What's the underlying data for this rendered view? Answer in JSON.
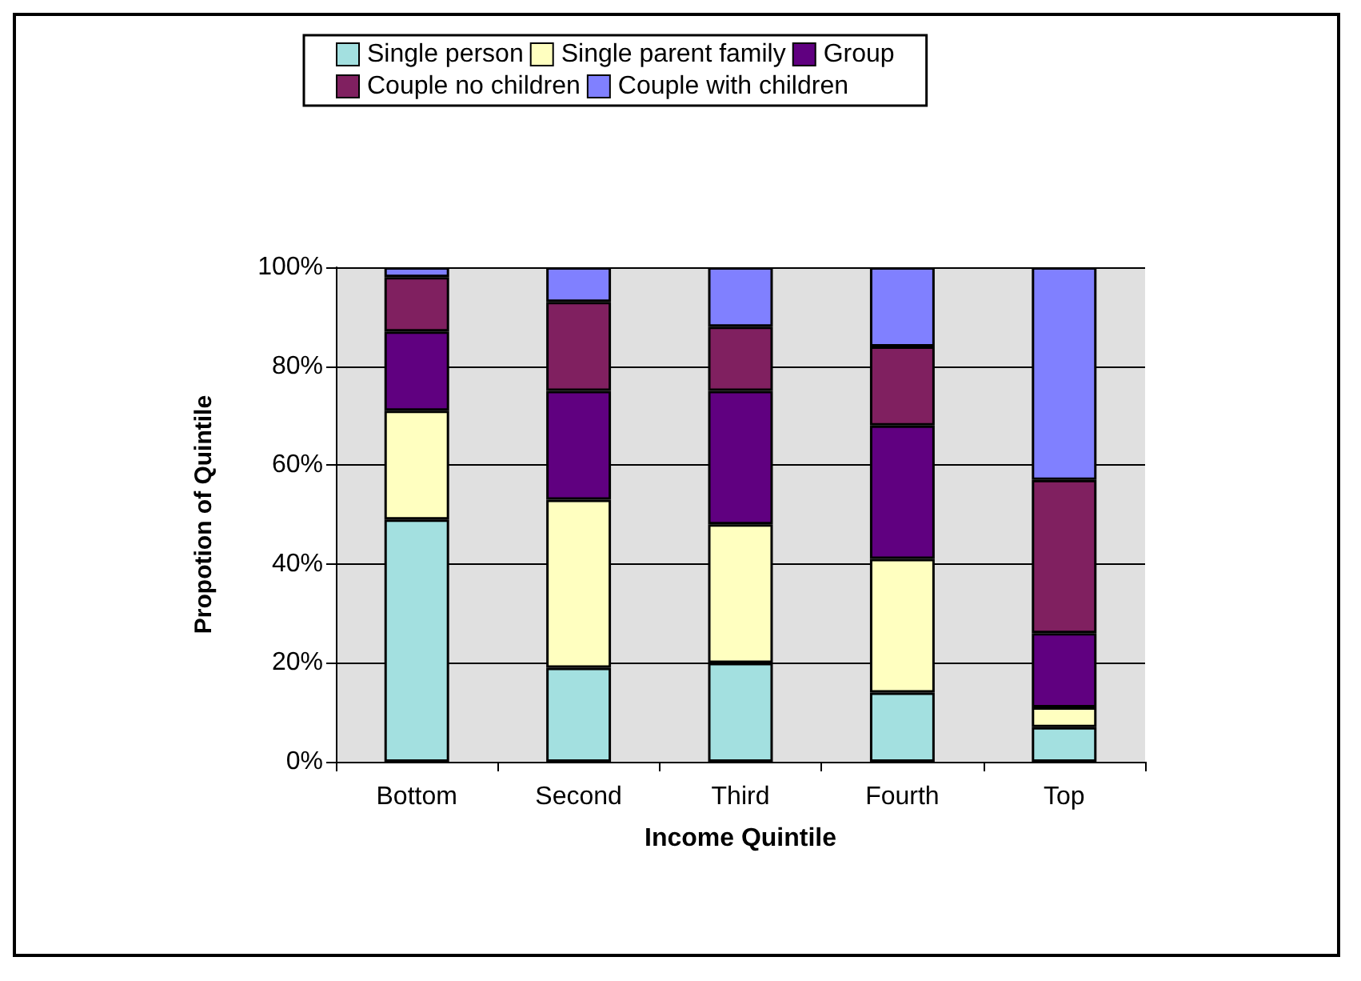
{
  "chart_data": {
    "type": "bar",
    "stacked": true,
    "categories": [
      "Bottom",
      "Second",
      "Third",
      "Fourth",
      "Top"
    ],
    "series": [
      {
        "name": "Single person",
        "color": "#a3e0e0",
        "values": [
          49,
          19,
          20,
          14,
          7
        ]
      },
      {
        "name": "Single parent family",
        "color": "#ffffc0",
        "values": [
          22,
          34,
          28,
          27,
          4
        ]
      },
      {
        "name": "Group",
        "color": "#600080",
        "values": [
          16,
          22,
          27,
          27,
          15
        ]
      },
      {
        "name": "Couple no children",
        "color": "#802060",
        "values": [
          11,
          18,
          13,
          16,
          31
        ]
      },
      {
        "name": "Couple with children",
        "color": "#8080ff",
        "values": [
          2,
          7,
          12,
          16,
          43
        ]
      }
    ],
    "xlabel": "Income Quintile",
    "ylabel": "Propotion of Quintile",
    "ylim": [
      0,
      100
    ],
    "yticks": [
      {
        "value": 0,
        "label": "0%"
      },
      {
        "value": 20,
        "label": "20%"
      },
      {
        "value": 40,
        "label": "40%"
      },
      {
        "value": 60,
        "label": "60%"
      },
      {
        "value": 80,
        "label": "80%"
      },
      {
        "value": 100,
        "label": "100%"
      }
    ],
    "grid": "y",
    "legend": "top"
  }
}
